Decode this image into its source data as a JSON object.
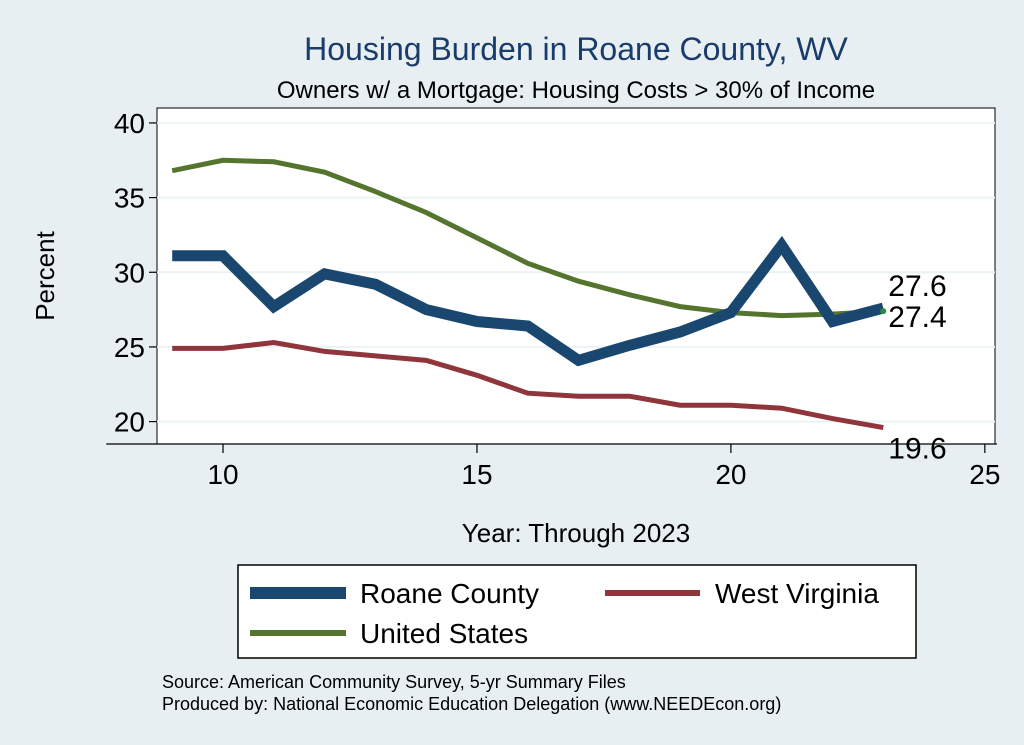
{
  "chart_data": {
    "type": "line",
    "title": "Housing Burden in Roane County, WV",
    "subtitle": "Owners w/ a Mortgage: Housing Costs > 30% of Income",
    "xlabel": "Year: Through 2023",
    "ylabel": "Percent",
    "xlim": [
      8.7,
      25.2
    ],
    "ylim": [
      18.5,
      41
    ],
    "xticks": [
      10,
      15,
      20,
      25
    ],
    "yticks": [
      20,
      25,
      30,
      35,
      40
    ],
    "grid": true,
    "legend_position": "bottom",
    "x": [
      9,
      10,
      11,
      12,
      13,
      14,
      15,
      16,
      17,
      18,
      19,
      20,
      21,
      22,
      23
    ],
    "series": [
      {
        "name": "Roane County",
        "color": "#1a476f",
        "values": [
          31.1,
          31.1,
          27.7,
          29.9,
          29.2,
          27.5,
          26.7,
          26.4,
          24.1,
          25.1,
          26.0,
          27.3,
          31.8,
          26.7,
          27.6
        ],
        "end_label": "27.6"
      },
      {
        "name": "West Virginia",
        "color": "#90353b",
        "values": [
          24.9,
          24.9,
          25.3,
          24.7,
          24.4,
          24.1,
          23.1,
          21.9,
          21.7,
          21.7,
          21.1,
          21.1,
          20.9,
          20.2,
          19.6
        ],
        "end_label": "19.6"
      },
      {
        "name": "United States",
        "color": "#55752f",
        "values": [
          36.8,
          37.5,
          37.4,
          36.7,
          35.4,
          34.0,
          32.3,
          30.6,
          29.4,
          28.5,
          27.7,
          27.3,
          27.1,
          27.2,
          27.4
        ],
        "end_label": "27.4"
      }
    ]
  },
  "notes": {
    "source": "Source: American Community Survey, 5-yr Summary Files",
    "produced": "Produced by: National Economic Education Delegation (www.NEEDEcon.org)"
  }
}
